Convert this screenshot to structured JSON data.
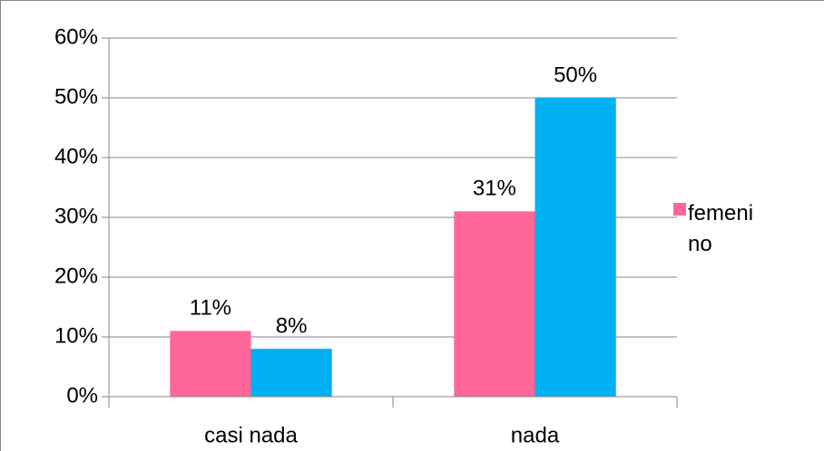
{
  "chart_data": {
    "type": "bar",
    "categories": [
      "casi nada",
      "nada"
    ],
    "series": [
      {
        "name": "femenino",
        "color": "#ff6699",
        "values": [
          11,
          31
        ],
        "value_labels": [
          "11%",
          "31%"
        ]
      },
      {
        "color": "#00b0f0",
        "values": [
          8,
          50
        ],
        "value_labels": [
          "8%",
          "50%"
        ]
      }
    ],
    "ylim": [
      0,
      60
    ],
    "yticks": [
      {
        "value": 0,
        "label": "0%"
      },
      {
        "value": 10,
        "label": "10%"
      },
      {
        "value": 20,
        "label": "20%"
      },
      {
        "value": 30,
        "label": "30%"
      },
      {
        "value": 40,
        "label": "40%"
      },
      {
        "value": 50,
        "label": "50%"
      },
      {
        "value": 60,
        "label": "60%"
      }
    ],
    "grid": true,
    "legend": "right"
  }
}
